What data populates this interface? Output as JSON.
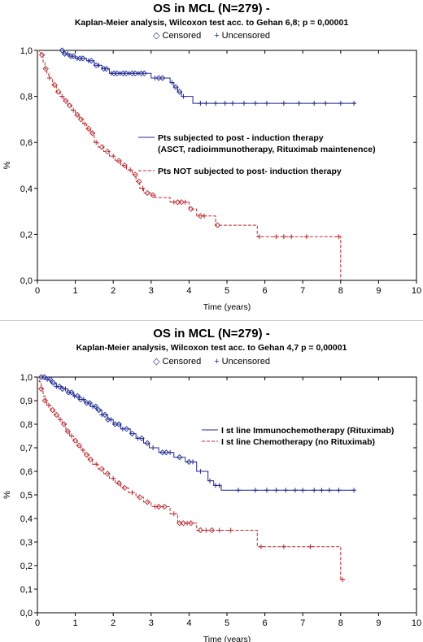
{
  "legend_header": {
    "censored_label": "Censored",
    "uncensored_label": "Uncensored",
    "censored_symbol": "◇",
    "uncensored_symbol": "+"
  },
  "colors": {
    "blue": "#1f2a96",
    "red": "#c0282d",
    "axis": "#000000"
  },
  "chart_data": [
    {
      "type": "line",
      "title": "OS in MCL (N=279) -",
      "subtitle": "Kaplan-Meier analysis,  Wilcoxon test acc. to Gehan 6,8;  p = 0,00001",
      "xlabel": "Time (years)",
      "ylabel": "%",
      "xlim": [
        0,
        10
      ],
      "ylim": [
        0,
        1
      ],
      "x_ticks": [
        0,
        1,
        2,
        3,
        4,
        5,
        6,
        7,
        8,
        9,
        10
      ],
      "y_ticks": [
        0,
        0.2,
        0.4,
        0.6,
        0.8,
        1.0
      ],
      "y_tick_labels": [
        "0,0",
        "0,2",
        "0,4",
        "0,6",
        "0,8",
        "1,0"
      ],
      "grid": false,
      "series": [
        {
          "name": "Pts subjected to post - induction therapy",
          "name_line2": "(ASCT, radioimmunotherapy, Rituximab maintenence)",
          "color": "#1f2a96",
          "dash": false,
          "steps": [
            [
              0.6,
              1.0
            ],
            [
              0.7,
              0.985
            ],
            [
              0.85,
              0.975
            ],
            [
              1.0,
              0.965
            ],
            [
              1.3,
              0.955
            ],
            [
              1.5,
              0.935
            ],
            [
              1.7,
              0.92
            ],
            [
              1.9,
              0.9
            ],
            [
              3.0,
              0.88
            ],
            [
              3.5,
              0.86
            ],
            [
              3.6,
              0.84
            ],
            [
              3.7,
              0.82
            ],
            [
              3.8,
              0.8
            ],
            [
              4.1,
              0.77
            ],
            [
              8.4,
              0.77
            ]
          ],
          "censored": [
            0.65,
            0.72,
            0.8,
            0.88,
            0.95,
            1.05,
            1.12,
            1.2,
            1.35,
            1.42,
            1.55,
            1.62,
            1.75,
            1.82,
            1.95,
            2.02,
            2.1,
            2.18,
            2.26,
            2.34,
            2.42,
            2.5,
            2.58,
            2.66,
            2.74,
            2.82,
            3.1,
            3.2,
            3.3,
            3.55,
            3.65,
            3.75,
            3.85,
            4.3,
            4.45,
            4.7,
            4.95,
            5.15,
            5.45,
            5.75,
            6.05,
            6.5,
            6.9,
            7.3,
            7.6,
            8.0,
            8.35
          ]
        },
        {
          "name": "Pts NOT subjected to post- induction therapy",
          "color": "#c0282d",
          "dash": true,
          "steps": [
            [
              0.0,
              1.0
            ],
            [
              0.05,
              0.99
            ],
            [
              0.1,
              0.98
            ],
            [
              0.15,
              0.95
            ],
            [
              0.2,
              0.92
            ],
            [
              0.25,
              0.9
            ],
            [
              0.3,
              0.88
            ],
            [
              0.4,
              0.85
            ],
            [
              0.5,
              0.82
            ],
            [
              0.6,
              0.8
            ],
            [
              0.7,
              0.78
            ],
            [
              0.8,
              0.76
            ],
            [
              0.9,
              0.74
            ],
            [
              1.0,
              0.72
            ],
            [
              1.1,
              0.7
            ],
            [
              1.2,
              0.68
            ],
            [
              1.3,
              0.66
            ],
            [
              1.4,
              0.64
            ],
            [
              1.5,
              0.6
            ],
            [
              1.6,
              0.58
            ],
            [
              1.75,
              0.56
            ],
            [
              1.9,
              0.54
            ],
            [
              2.05,
              0.52
            ],
            [
              2.2,
              0.5
            ],
            [
              2.35,
              0.48
            ],
            [
              2.5,
              0.46
            ],
            [
              2.6,
              0.43
            ],
            [
              2.7,
              0.4
            ],
            [
              2.8,
              0.38
            ],
            [
              3.0,
              0.37
            ],
            [
              3.1,
              0.36
            ],
            [
              3.5,
              0.34
            ],
            [
              4.0,
              0.31
            ],
            [
              4.2,
              0.28
            ],
            [
              4.7,
              0.24
            ],
            [
              5.8,
              0.19
            ],
            [
              7.9,
              0.19
            ],
            [
              8.0,
              0.0
            ]
          ],
          "censored": [
            0.12,
            0.22,
            0.32,
            0.45,
            0.55,
            0.65,
            0.75,
            0.85,
            0.95,
            1.05,
            1.15,
            1.25,
            1.35,
            1.45,
            1.55,
            1.7,
            1.85,
            2.0,
            2.15,
            2.3,
            2.45,
            2.58,
            2.68,
            2.78,
            2.9,
            3.05,
            3.6,
            3.7,
            3.8,
            3.9,
            4.05,
            4.3,
            4.4,
            4.75,
            5.85,
            6.3,
            6.5,
            6.7,
            7.1,
            7.95
          ]
        }
      ]
    },
    {
      "type": "line",
      "title": "OS in MCL (N=279) -",
      "subtitle": "Kaplan-Meier analysis,  Wilcoxon test acc. to Gehan 4,7 p = 0,00001",
      "xlabel": "Time (years)",
      "ylabel": "%",
      "xlim": [
        0,
        10
      ],
      "ylim": [
        0,
        1
      ],
      "x_ticks": [
        0,
        1,
        2,
        3,
        4,
        5,
        6,
        7,
        8,
        9,
        10
      ],
      "y_ticks": [
        0,
        0.1,
        0.2,
        0.3,
        0.4,
        0.5,
        0.6,
        0.7,
        0.8,
        0.9,
        1.0
      ],
      "y_tick_labels": [
        "0,0",
        "0,1",
        "0,2",
        "0,3",
        "0,4",
        "0,5",
        "0,6",
        "0,7",
        "0,8",
        "0,9",
        "1,0"
      ],
      "grid": false,
      "series": [
        {
          "name": "I st line Immunochemotherapy (Rituximab)",
          "color": "#1f2a96",
          "dash": false,
          "steps": [
            [
              0.0,
              1.0
            ],
            [
              0.2,
              0.99
            ],
            [
              0.35,
              0.975
            ],
            [
              0.5,
              0.96
            ],
            [
              0.65,
              0.95
            ],
            [
              0.8,
              0.935
            ],
            [
              0.95,
              0.92
            ],
            [
              1.1,
              0.905
            ],
            [
              1.25,
              0.89
            ],
            [
              1.4,
              0.875
            ],
            [
              1.55,
              0.86
            ],
            [
              1.7,
              0.84
            ],
            [
              1.85,
              0.82
            ],
            [
              2.0,
              0.8
            ],
            [
              2.2,
              0.78
            ],
            [
              2.45,
              0.76
            ],
            [
              2.6,
              0.74
            ],
            [
              2.8,
              0.72
            ],
            [
              2.95,
              0.7
            ],
            [
              3.2,
              0.68
            ],
            [
              3.6,
              0.66
            ],
            [
              3.9,
              0.64
            ],
            [
              4.2,
              0.6
            ],
            [
              4.5,
              0.56
            ],
            [
              4.65,
              0.54
            ],
            [
              4.85,
              0.52
            ],
            [
              8.35,
              0.52
            ]
          ],
          "censored": [
            0.1,
            0.18,
            0.26,
            0.34,
            0.42,
            0.5,
            0.58,
            0.66,
            0.74,
            0.82,
            0.9,
            0.98,
            1.06,
            1.14,
            1.22,
            1.3,
            1.38,
            1.46,
            1.54,
            1.62,
            1.7,
            1.78,
            1.86,
            1.94,
            2.05,
            2.15,
            2.25,
            2.35,
            2.5,
            2.65,
            2.75,
            2.9,
            3.05,
            3.3,
            3.4,
            3.5,
            3.75,
            4.0,
            4.1,
            4.3,
            4.55,
            4.7,
            4.8,
            5.3,
            5.75,
            6.05,
            6.3,
            6.55,
            6.8,
            7.0,
            7.3,
            7.5,
            7.7,
            7.95,
            8.35
          ]
        },
        {
          "name": "I st line Chemotherapy (no Rituximab)",
          "color": "#c0282d",
          "dash": true,
          "steps": [
            [
              0.0,
              1.0
            ],
            [
              0.05,
              0.98
            ],
            [
              0.1,
              0.95
            ],
            [
              0.15,
              0.92
            ],
            [
              0.2,
              0.9
            ],
            [
              0.25,
              0.88
            ],
            [
              0.35,
              0.86
            ],
            [
              0.45,
              0.84
            ],
            [
              0.55,
              0.82
            ],
            [
              0.65,
              0.8
            ],
            [
              0.75,
              0.77
            ],
            [
              0.85,
              0.75
            ],
            [
              0.95,
              0.73
            ],
            [
              1.05,
              0.71
            ],
            [
              1.15,
              0.69
            ],
            [
              1.25,
              0.67
            ],
            [
              1.35,
              0.65
            ],
            [
              1.45,
              0.63
            ],
            [
              1.6,
              0.61
            ],
            [
              1.75,
              0.59
            ],
            [
              1.9,
              0.57
            ],
            [
              2.05,
              0.55
            ],
            [
              2.2,
              0.53
            ],
            [
              2.4,
              0.51
            ],
            [
              2.6,
              0.49
            ],
            [
              2.8,
              0.47
            ],
            [
              3.0,
              0.45
            ],
            [
              3.5,
              0.42
            ],
            [
              3.7,
              0.38
            ],
            [
              4.2,
              0.35
            ],
            [
              5.8,
              0.28
            ],
            [
              7.9,
              0.28
            ],
            [
              8.0,
              0.14
            ],
            [
              8.1,
              0.14
            ]
          ],
          "censored": [
            0.1,
            0.2,
            0.3,
            0.4,
            0.5,
            0.6,
            0.7,
            0.8,
            0.9,
            1.0,
            1.1,
            1.2,
            1.3,
            1.4,
            1.55,
            1.7,
            1.85,
            2.0,
            2.15,
            2.3,
            2.5,
            2.7,
            2.9,
            3.1,
            3.2,
            3.35,
            3.6,
            3.75,
            3.85,
            3.95,
            4.05,
            4.3,
            4.45,
            4.6,
            4.8,
            5.1,
            5.9,
            6.5,
            7.2,
            8.05
          ]
        }
      ]
    }
  ]
}
